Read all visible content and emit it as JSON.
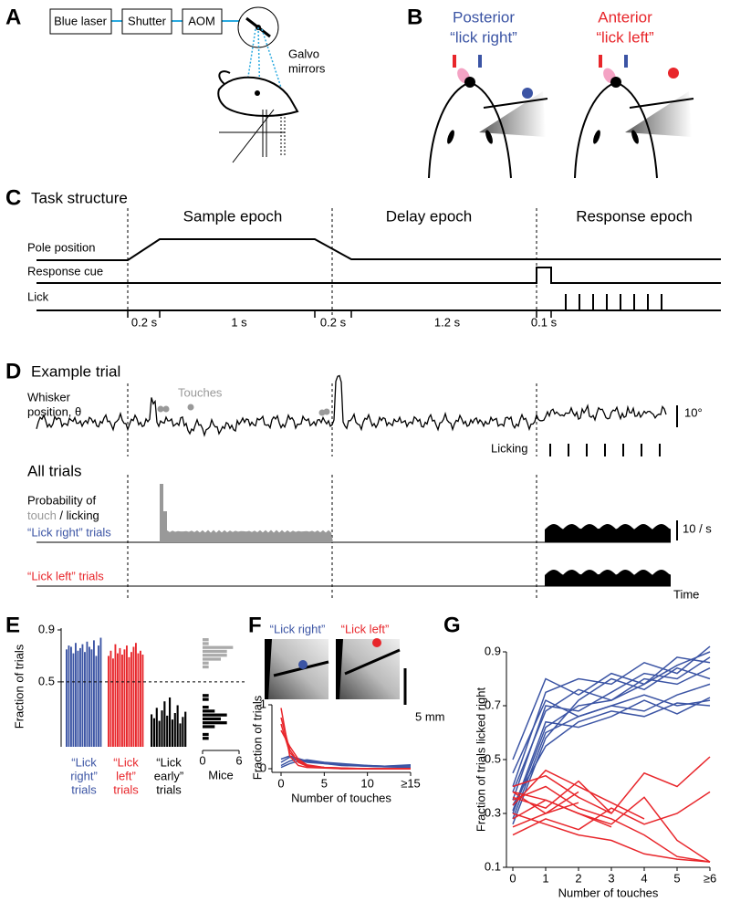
{
  "panel_labels": [
    "A",
    "B",
    "C",
    "D",
    "E",
    "F",
    "G"
  ],
  "A": {
    "boxes": [
      "Blue laser",
      "Shutter",
      "AOM"
    ],
    "mirror_label": [
      "Galvo",
      "mirrors"
    ]
  },
  "B": {
    "conditions": [
      {
        "name": "Posterior",
        "label": "“lick right”"
      },
      {
        "name": "Anterior",
        "label": "“lick left”"
      }
    ]
  },
  "C": {
    "title": "Task structure",
    "epochs": [
      "Sample epoch",
      "Delay epoch",
      "Response epoch"
    ],
    "rows": [
      "Pole position",
      "Response cue",
      "Lick"
    ],
    "durations": [
      "0.2 s",
      "1 s",
      "0.2 s",
      "1.2 s",
      "0.1 s"
    ]
  },
  "D": {
    "title": "Example trial",
    "whisker_label": [
      "Whisker",
      "position, θ"
    ],
    "touches": "Touches",
    "angle_scale": "10°",
    "licking": "Licking",
    "all_trials": "All trials",
    "probability_label": [
      "Probability of",
      "touch",
      " / licking"
    ],
    "rate_scale": "10 / s",
    "trial_types": [
      "“Lick right” trials",
      "“Lick left” trials"
    ],
    "time": "Time"
  },
  "F_images": {
    "labels": [
      "“Lick right”",
      "“Lick left”"
    ],
    "scale": "5 mm"
  },
  "chart_data": [
    {
      "type": "bar",
      "ylabel": "Fraction of trials",
      "ylim": [
        0,
        0.9
      ],
      "yticks": [
        0.5,
        0.9
      ],
      "reference_line": 0.5,
      "series": [
        {
          "name": [
            "“Lick",
            "right”",
            "trials"
          ],
          "color": "#3b54a4",
          "values": [
            0.75,
            0.78,
            0.77,
            0.72,
            0.8,
            0.74,
            0.76,
            0.79,
            0.73,
            0.81,
            0.77,
            0.75,
            0.82,
            0.7,
            0.78,
            0.84
          ]
        },
        {
          "name": [
            "“Lick",
            "left”",
            "trials"
          ],
          "color": "#e8262b",
          "values": [
            0.7,
            0.74,
            0.68,
            0.79,
            0.72,
            0.76,
            0.71,
            0.75,
            0.78,
            0.69,
            0.73,
            0.77,
            0.8,
            0.72,
            0.74,
            0.71
          ]
        },
        {
          "name": [
            "“Lick",
            "early”",
            "trials"
          ],
          "color": "#000000",
          "values": [
            0.25,
            0.22,
            0.3,
            0.2,
            0.28,
            0.35,
            0.24,
            0.38,
            0.21,
            0.26,
            0.32,
            0.18,
            0.23,
            0.27
          ]
        }
      ]
    },
    {
      "type": "histogram",
      "xlabel": "Mice",
      "xlim": [
        0,
        6
      ],
      "xticks": [
        0,
        6
      ],
      "series": [
        {
          "color": "#aaaaaa",
          "bins": [
            0.6,
            0.63,
            0.66,
            0.69,
            0.72,
            0.75,
            0.78,
            0.81,
            0.84
          ],
          "counts": [
            1,
            1,
            3,
            4,
            4,
            5,
            1,
            1
          ]
        },
        {
          "color": "#000000",
          "bins": [
            0.05,
            0.08,
            0.11,
            0.14,
            0.17,
            0.2,
            0.23,
            0.26,
            0.29,
            0.32,
            0.35,
            0.38,
            0.41
          ],
          "counts": [
            1,
            1,
            0,
            2,
            4,
            3,
            4,
            2,
            1,
            0,
            1,
            1
          ]
        }
      ]
    },
    {
      "type": "line",
      "xlabel": "Number of touches",
      "ylabel": "Fraction of trials",
      "x": [
        0,
        1,
        2,
        3,
        5,
        7,
        10,
        12,
        15
      ],
      "xlim": [
        0,
        15
      ],
      "xticks": [
        0,
        5,
        10,
        {
          "value": 15,
          "label": "≥15"
        }
      ],
      "ylim": [
        0,
        1
      ],
      "yticks": [
        0,
        1
      ],
      "series": [
        {
          "color": "#3b54a4",
          "values": [
            0.05,
            0.12,
            0.15,
            0.12,
            0.08,
            0.06,
            0.04,
            0.03,
            0.02
          ]
        },
        {
          "color": "#3b54a4",
          "values": [
            0.1,
            0.18,
            0.14,
            0.1,
            0.08,
            0.05,
            0.04,
            0.03,
            0.03
          ]
        },
        {
          "color": "#3b54a4",
          "values": [
            0.02,
            0.08,
            0.12,
            0.14,
            0.1,
            0.08,
            0.05,
            0.04,
            0.05
          ]
        },
        {
          "color": "#3b54a4",
          "values": [
            0.15,
            0.2,
            0.16,
            0.12,
            0.09,
            0.06,
            0.05,
            0.04,
            0.06
          ]
        },
        {
          "color": "#e8262b",
          "values": [
            0.95,
            0.2,
            0.05,
            0.02,
            0.01,
            0,
            0,
            0,
            0
          ]
        },
        {
          "color": "#e8262b",
          "values": [
            0.8,
            0.3,
            0.1,
            0.04,
            0.02,
            0.01,
            0,
            0,
            0
          ]
        },
        {
          "color": "#e8262b",
          "values": [
            0.6,
            0.35,
            0.15,
            0.06,
            0.02,
            0.01,
            0,
            0,
            0
          ]
        },
        {
          "color": "#e8262b",
          "values": [
            0.7,
            0.25,
            0.12,
            0.05,
            0.02,
            0,
            0,
            0,
            0
          ]
        }
      ]
    },
    {
      "type": "line",
      "xlabel": "Number of touches",
      "ylabel": "Fraction of trials licked right",
      "x": [
        0,
        1,
        2,
        3,
        4,
        5,
        6
      ],
      "xlim": [
        0,
        6
      ],
      "xticks": [
        0,
        1,
        2,
        3,
        4,
        5,
        {
          "value": 6,
          "label": "≥6"
        }
      ],
      "ylim": [
        0.1,
        0.9
      ],
      "yticks": [
        0.1,
        0.3,
        0.5,
        0.7,
        0.9
      ],
      "series": [
        {
          "color": "#3b54a4",
          "values": [
            0.3,
            0.62,
            0.7,
            0.72,
            0.78,
            0.85,
            0.9
          ]
        },
        {
          "color": "#3b54a4",
          "values": [
            0.35,
            0.7,
            0.68,
            0.75,
            0.82,
            0.8,
            0.88
          ]
        },
        {
          "color": "#3b54a4",
          "values": [
            0.28,
            0.6,
            0.66,
            0.7,
            0.74,
            0.7,
            0.72
          ]
        },
        {
          "color": "#3b54a4",
          "values": [
            0.4,
            0.75,
            0.8,
            0.78,
            0.86,
            0.82,
            0.92
          ]
        },
        {
          "color": "#3b54a4",
          "values": [
            0.33,
            0.55,
            0.64,
            0.68,
            0.66,
            0.71,
            0.7
          ]
        },
        {
          "color": "#3b54a4",
          "values": [
            0.26,
            0.58,
            0.72,
            0.8,
            0.76,
            0.84,
            0.8
          ]
        },
        {
          "color": "#3b54a4",
          "values": [
            0.45,
            0.72,
            0.66,
            0.7,
            0.68,
            0.74,
            0.78
          ]
        },
        {
          "color": "#3b54a4",
          "values": [
            0.31,
            0.64,
            0.62,
            0.66,
            0.72,
            0.67,
            0.73
          ]
        },
        {
          "color": "#3b54a4",
          "values": [
            0.38,
            0.68,
            0.76,
            0.72,
            0.8,
            0.78,
            0.84
          ]
        },
        {
          "color": "#3b54a4",
          "values": [
            0.5,
            0.8,
            0.74,
            0.82,
            0.78,
            0.88,
            0.86
          ]
        },
        {
          "color": "#e8262b",
          "values": [
            0.38,
            0.35,
            0.3,
            0.25,
            null,
            null,
            null
          ]
        },
        {
          "color": "#e8262b",
          "values": [
            0.35,
            0.4,
            0.32,
            0.28,
            0.22,
            0.14,
            0.12
          ]
        },
        {
          "color": "#e8262b",
          "values": [
            0.25,
            0.3,
            0.38,
            null,
            null,
            null,
            null
          ]
        },
        {
          "color": "#e8262b",
          "values": [
            0.4,
            0.44,
            0.36,
            0.3,
            0.45,
            0.4,
            0.51
          ]
        },
        {
          "color": "#e8262b",
          "values": [
            0.3,
            0.26,
            0.22,
            0.2,
            0.15,
            0.13,
            0.12
          ]
        },
        {
          "color": "#e8262b",
          "values": [
            0.36,
            0.32,
            0.42,
            0.3,
            null,
            null,
            null
          ]
        },
        {
          "color": "#e8262b",
          "values": [
            0.22,
            0.28,
            0.24,
            0.32,
            0.26,
            0.3,
            0.38
          ]
        },
        {
          "color": "#e8262b",
          "values": [
            0.38,
            0.3,
            0.34,
            null,
            null,
            null,
            null
          ]
        },
        {
          "color": "#e8262b",
          "values": [
            0.28,
            0.35,
            0.3,
            0.26,
            0.36,
            0.2,
            0.12
          ]
        },
        {
          "color": "#e8262b",
          "values": [
            0.33,
            0.46,
            0.4,
            0.34,
            0.28,
            null,
            null
          ]
        }
      ]
    }
  ]
}
